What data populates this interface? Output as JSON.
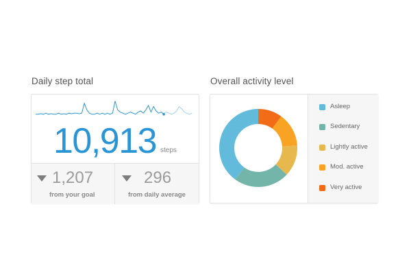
{
  "steps": {
    "title": "Daily step total",
    "value": "10,913",
    "unit": "steps",
    "stats": [
      {
        "value": "1,207",
        "label": "from your goal",
        "trend": "down"
      },
      {
        "value": "296",
        "label": "from daily average",
        "trend": "down"
      }
    ]
  },
  "activity": {
    "title": "Overall activity level",
    "legend": [
      {
        "label": "Asleep",
        "color": "#62bbdb"
      },
      {
        "label": "Sedentary",
        "color": "#74b5aa"
      },
      {
        "label": "Lightly active",
        "color": "#e6b84d"
      },
      {
        "label": "Mod. active",
        "color": "#f8a324"
      },
      {
        "label": "Very active",
        "color": "#f26b16"
      }
    ]
  },
  "chart_data": [
    {
      "type": "line",
      "series": [
        {
          "name": "",
          "values": [
            2,
            2,
            2.5,
            2,
            3,
            2,
            2.5,
            2,
            2,
            3,
            2,
            2.5,
            2,
            3,
            2.5,
            3,
            3,
            2.5,
            3,
            12,
            6,
            3,
            2,
            2,
            3,
            2,
            3,
            2,
            3,
            2,
            3,
            14,
            6,
            4,
            3,
            2,
            3,
            4,
            3,
            2,
            4,
            5,
            3,
            6,
            10,
            4,
            9,
            5,
            3,
            4,
            2
          ]
        },
        {
          "name": "",
          "values": [
            3,
            4,
            3,
            2,
            3,
            5,
            9,
            7,
            4,
            3,
            2,
            3
          ]
        }
      ],
      "title": "",
      "grid": false
    },
    {
      "type": "pie",
      "categories": [
        "Asleep",
        "Sedentary",
        "Lightly active",
        "Mod. active",
        "Very active"
      ],
      "values": [
        40,
        23,
        13,
        14,
        10
      ],
      "title": ""
    }
  ]
}
